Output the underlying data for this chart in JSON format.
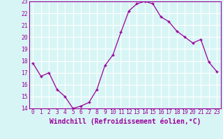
{
  "x": [
    0,
    1,
    2,
    3,
    4,
    5,
    6,
    7,
    8,
    9,
    10,
    11,
    12,
    13,
    14,
    15,
    16,
    17,
    18,
    19,
    20,
    21,
    22,
    23
  ],
  "y": [
    17.8,
    16.7,
    17.0,
    15.6,
    15.0,
    14.0,
    14.2,
    14.5,
    15.6,
    17.6,
    18.5,
    20.4,
    22.2,
    22.8,
    23.0,
    22.8,
    21.7,
    21.3,
    20.5,
    20.0,
    19.5,
    19.8,
    17.9,
    17.1
  ],
  "ylim": [
    14,
    23
  ],
  "yticks": [
    14,
    15,
    16,
    17,
    18,
    19,
    20,
    21,
    22,
    23
  ],
  "xticks": [
    0,
    1,
    2,
    3,
    4,
    5,
    6,
    7,
    8,
    9,
    10,
    11,
    12,
    13,
    14,
    15,
    16,
    17,
    18,
    19,
    20,
    21,
    22,
    23
  ],
  "xlabel": "Windchill (Refroidissement éolien,°C)",
  "line_color": "#990099",
  "marker": "+",
  "bg_color": "#d8f5f5",
  "grid_color": "#ffffff",
  "tick_label_fontsize": 5.8,
  "xlabel_fontsize": 7.0,
  "xlabel_color": "#990099",
  "tick_color": "#990099"
}
